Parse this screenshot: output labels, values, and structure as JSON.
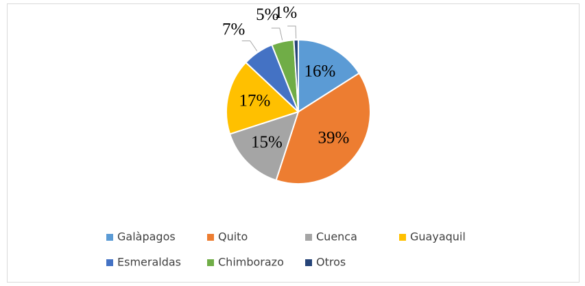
{
  "chart_data": {
    "type": "pie",
    "categories": [
      "Galàpagos",
      "Quito",
      "Cuenca",
      "Guayaquil",
      "Esmeraldas",
      "Chimborazo",
      "Otros"
    ],
    "values": [
      16,
      39,
      15,
      17,
      7,
      5,
      1
    ],
    "value_labels": [
      "16%",
      "39%",
      "15%",
      "17%",
      "7%",
      "5%",
      "1%"
    ],
    "colors": [
      "#5b9bd5",
      "#ed7d31",
      "#a5a5a5",
      "#ffc000",
      "#4472c4",
      "#70ad47",
      "#264478"
    ],
    "legend": "bottom"
  }
}
